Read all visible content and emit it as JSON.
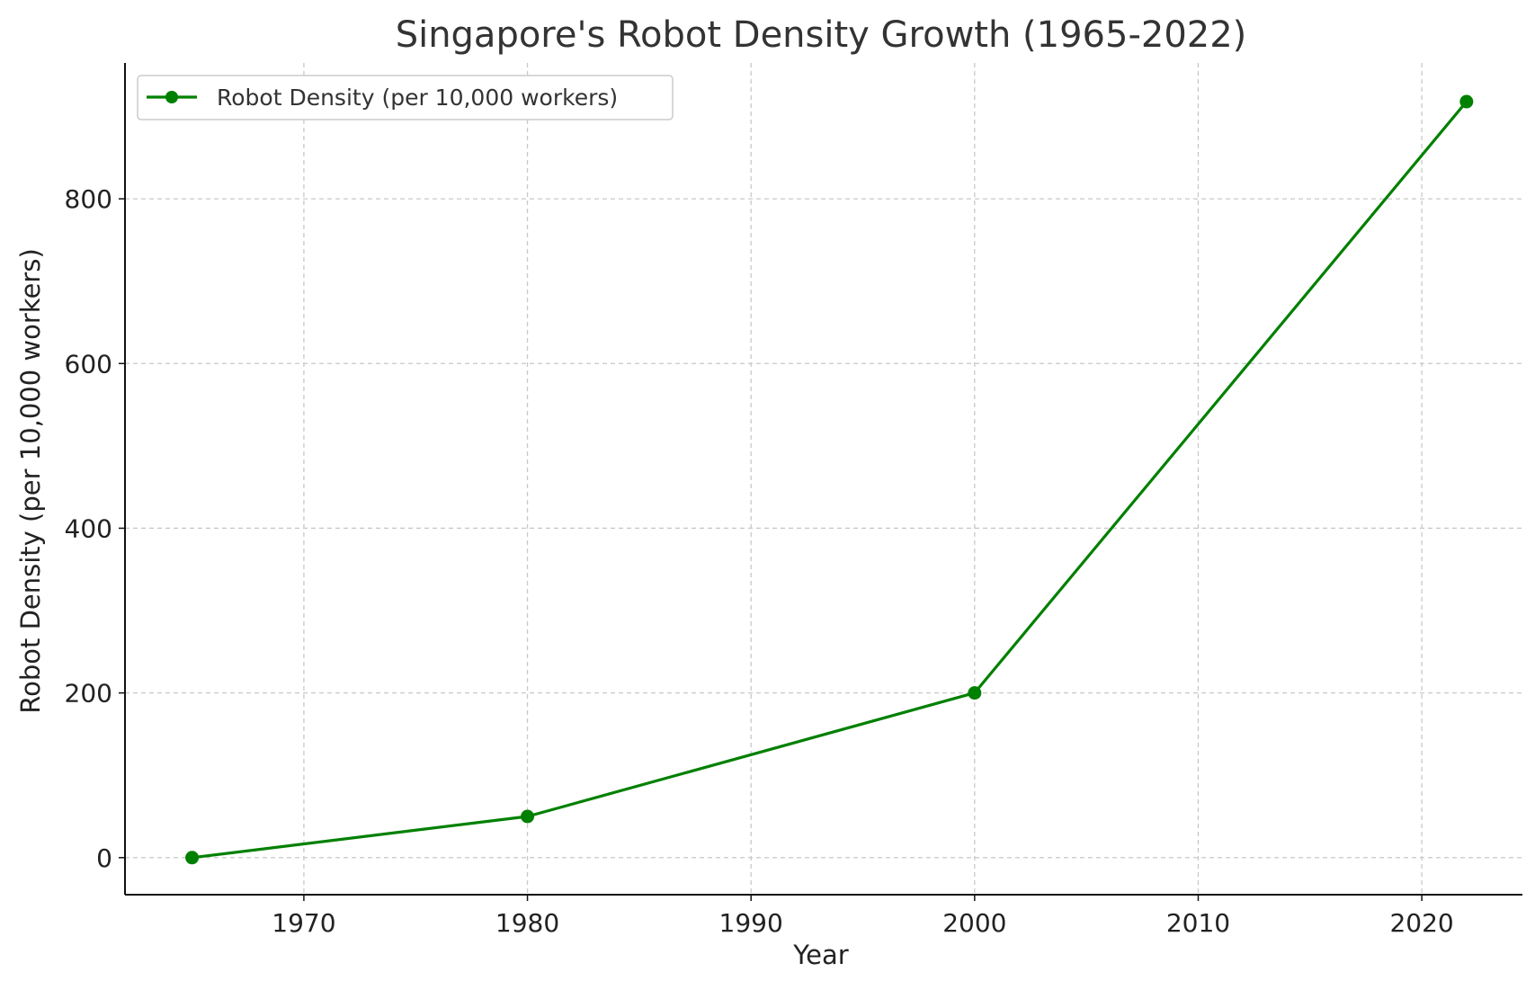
{
  "chart_data": {
    "type": "line",
    "title": "Singapore's Robot Density Growth (1965-2022)",
    "xlabel": "Year",
    "ylabel": "Robot Density (per 10,000 workers)",
    "xlim": [
      1962,
      2024.5
    ],
    "ylim": [
      -45,
      965
    ],
    "x_ticks": [
      1970,
      1980,
      1990,
      2000,
      2010,
      2020
    ],
    "y_ticks": [
      0,
      200,
      400,
      600,
      800
    ],
    "grid": true,
    "legend_position": "top-left",
    "series": [
      {
        "name": "Robot Density (per 10,000 workers)",
        "color": "#008000",
        "marker": "circle",
        "x": [
          1965,
          1980,
          2000,
          2022
        ],
        "values": [
          0,
          50,
          200,
          918
        ]
      }
    ]
  }
}
